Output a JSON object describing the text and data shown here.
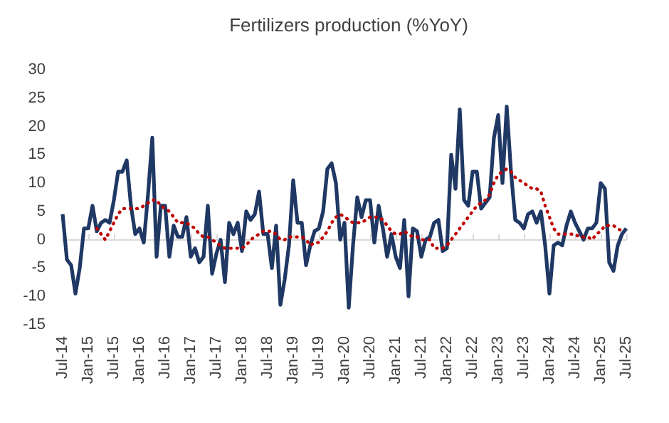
{
  "chart_data": {
    "type": "line",
    "title": "Fertilizers production (%YoY)",
    "categories": [
      "Jul-14",
      null,
      null,
      null,
      null,
      null,
      "Jan-15",
      null,
      null,
      null,
      null,
      null,
      "Jul-15",
      null,
      null,
      null,
      null,
      null,
      "Jan-16",
      null,
      null,
      null,
      null,
      null,
      "Jul-16",
      null,
      null,
      null,
      null,
      null,
      "Jan-17",
      null,
      null,
      null,
      null,
      null,
      "Jul-17",
      null,
      null,
      null,
      null,
      null,
      "Jan-18",
      null,
      null,
      null,
      null,
      null,
      "Jul-18",
      null,
      null,
      null,
      null,
      null,
      "Jan-19",
      null,
      null,
      null,
      null,
      null,
      "Jul-19",
      null,
      null,
      null,
      null,
      null,
      "Jan-20",
      null,
      null,
      null,
      null,
      null,
      "Jul-20",
      null,
      null,
      null,
      null,
      null,
      "Jan-21",
      null,
      null,
      null,
      null,
      null,
      "Jul-21",
      null,
      null,
      null,
      null,
      null,
      "Jan-22",
      null,
      null,
      null,
      null,
      null,
      "Jul-22",
      null,
      null,
      null,
      null,
      null,
      "Jan-23",
      null,
      null,
      null,
      null,
      null,
      "Jul-23",
      null,
      null,
      null,
      null,
      null,
      "Jan-24",
      null,
      null,
      null,
      null,
      null,
      "Jul-24",
      null,
      null,
      null,
      null,
      null,
      "Jan-25",
      null,
      null,
      null,
      null,
      null,
      "Jul-25"
    ],
    "series": [
      {
        "color": "#1f3864",
        "line_style": "solid",
        "values": [
          4.5,
          -3.5,
          -4.5,
          -9.5,
          -5,
          2,
          2,
          6,
          1.5,
          3,
          3.5,
          3,
          7,
          12,
          12,
          14,
          6,
          1,
          2,
          -0.5,
          8,
          18,
          -3,
          6,
          6,
          -3,
          2.5,
          0.5,
          0.5,
          4,
          -3,
          -1.5,
          -4,
          -3,
          6,
          -6,
          -2.5,
          0,
          -7.5,
          3,
          1,
          3,
          -2,
          5,
          3.5,
          4.5,
          8.5,
          1,
          1,
          -5,
          2.5,
          -11.5,
          -7,
          -1,
          10.5,
          3,
          3,
          -4.5,
          -1,
          1.5,
          2,
          5,
          12.5,
          13.5,
          10,
          0,
          3,
          -12,
          -1,
          7.5,
          4,
          7,
          7,
          -0.5,
          6,
          2,
          -3,
          1,
          -3,
          -5,
          3.5,
          -10,
          2,
          1.5,
          -3,
          0,
          0.5,
          3,
          3.5,
          -2,
          -1.5,
          15,
          9,
          23,
          7,
          6,
          12,
          12,
          5.5,
          6.5,
          7.5,
          18,
          22,
          10,
          23.5,
          12,
          3.5,
          3,
          2,
          4.5,
          5,
          3,
          5,
          -1,
          -9.5,
          -1,
          -0.5,
          -1,
          2.5,
          5,
          3,
          1.5,
          0,
          2,
          2,
          3,
          10,
          9,
          -4,
          -5.5,
          -1,
          1,
          2
        ]
      },
      {
        "color": "#c00000",
        "line_style": "dotted",
        "values": [
          null,
          null,
          null,
          null,
          null,
          null,
          null,
          null,
          2,
          1,
          0,
          1.5,
          3,
          4.5,
          5.5,
          5.5,
          5.5,
          5.5,
          5.5,
          6,
          6.5,
          7,
          7,
          6,
          5.5,
          5,
          4,
          3,
          3,
          3,
          2.5,
          2,
          1,
          0.5,
          0.5,
          0,
          -0.5,
          -1,
          -1.5,
          -1.5,
          -1.5,
          -1.5,
          -1.5,
          -1,
          0,
          0.5,
          1,
          1.5,
          1.5,
          1.5,
          1,
          0,
          0,
          0.5,
          0.5,
          0.5,
          0.5,
          0,
          -1,
          -0.5,
          -0.5,
          0.5,
          1.5,
          3,
          4,
          4.5,
          4,
          3.5,
          3,
          3,
          3,
          3.5,
          4,
          4,
          4,
          3.5,
          2.5,
          1.5,
          1,
          1,
          1.5,
          1,
          0.5,
          0.5,
          0,
          0,
          0,
          -1.5,
          -1.5,
          -1.5,
          -1,
          0,
          1,
          2,
          3,
          4,
          5,
          6,
          6.5,
          7,
          8,
          10,
          11.5,
          12,
          12.5,
          12,
          11,
          10.5,
          10,
          9.5,
          9,
          9,
          8.5,
          6,
          4,
          2,
          1,
          1,
          1,
          1,
          1,
          0.5,
          0.5,
          0.5,
          0,
          1,
          1.5,
          2.5,
          2.5,
          2.5,
          2,
          1.5,
          null
        ]
      }
    ],
    "ylim": [
      -15,
      30
    ],
    "yticks": [
      -15,
      -10,
      -5,
      0,
      5,
      10,
      15,
      20,
      25,
      30
    ],
    "marker": "none"
  }
}
